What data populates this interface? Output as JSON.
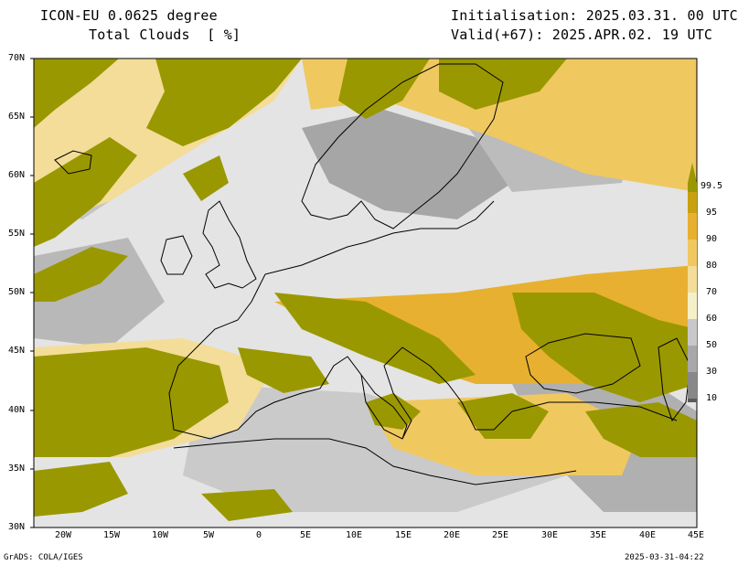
{
  "header": {
    "model": "ICON-EU 0.0625 degree",
    "field": "Total Clouds  [ %]",
    "init": "Initialisation: 2025.03.31. 00 UTC",
    "valid": "Valid(+67): 2025.APR.02. 19 UTC"
  },
  "lat_labels": [
    "70N",
    "65N",
    "60N",
    "55N",
    "50N",
    "45N",
    "40N",
    "35N",
    "30N"
  ],
  "lon_labels": [
    "20W",
    "15W",
    "10W",
    "5W",
    "0",
    "5E",
    "10E",
    "15E",
    "20E",
    "25E",
    "30E",
    "35E",
    "40E",
    "45E"
  ],
  "colorbar": {
    "labels": [
      "99.5",
      "95",
      "90",
      "80",
      "70",
      "60",
      "50",
      "30",
      "10"
    ],
    "colors": [
      "#c8a010",
      "#e8b030",
      "#f0c860",
      "#f3dd98",
      "#f6f0c8",
      "#e6e6e6",
      "#c8c8c8",
      "#a8a8a8",
      "#888888",
      "#5a5a5a"
    ],
    "top_color": "#9a9800"
  },
  "footer": {
    "left": "GrADS: COLA/IGES",
    "right": "2025-03-31-04:22"
  }
}
